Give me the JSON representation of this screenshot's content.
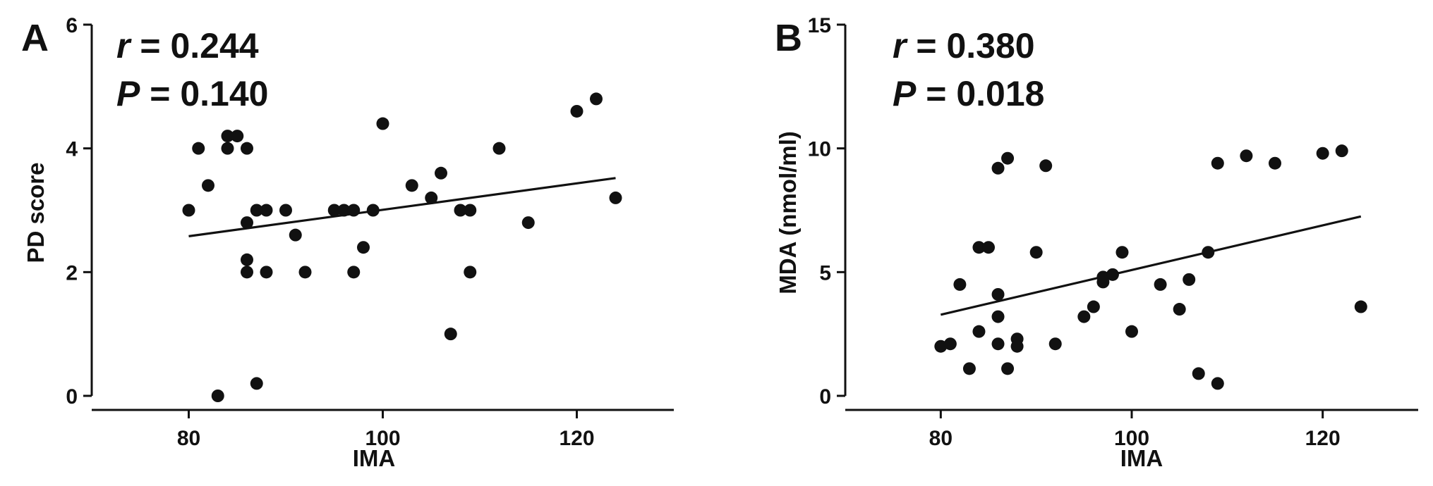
{
  "chart_data": [
    {
      "type": "scatter",
      "panel": "A",
      "stats": [
        {
          "symbol": "r",
          "text": " = 0.244"
        },
        {
          "symbol": "P",
          "text": " = 0.140"
        }
      ],
      "xlabel": "IMA",
      "ylabel": "PD score",
      "xlim": [
        70,
        130
      ],
      "ylim": [
        0,
        6
      ],
      "xticks": [
        80,
        100,
        120
      ],
      "yticks": [
        0,
        2,
        4,
        6
      ],
      "grid": false,
      "trendline": {
        "x1": 80,
        "y1": 2.58,
        "x2": 124,
        "y2": 3.52
      },
      "points": [
        {
          "x": 80,
          "y": 3.0
        },
        {
          "x": 81,
          "y": 4.0
        },
        {
          "x": 82,
          "y": 3.4
        },
        {
          "x": 83,
          "y": 0.0
        },
        {
          "x": 84,
          "y": 4.2
        },
        {
          "x": 84,
          "y": 4.0
        },
        {
          "x": 85,
          "y": 4.2
        },
        {
          "x": 86,
          "y": 4.0
        },
        {
          "x": 86,
          "y": 2.8
        },
        {
          "x": 86,
          "y": 2.2
        },
        {
          "x": 86,
          "y": 2.0
        },
        {
          "x": 87,
          "y": 3.0
        },
        {
          "x": 87,
          "y": 0.2
        },
        {
          "x": 88,
          "y": 3.0
        },
        {
          "x": 88,
          "y": 2.0
        },
        {
          "x": 90,
          "y": 3.0
        },
        {
          "x": 91,
          "y": 2.6
        },
        {
          "x": 92,
          "y": 2.0
        },
        {
          "x": 95,
          "y": 3.0
        },
        {
          "x": 96,
          "y": 3.0
        },
        {
          "x": 97,
          "y": 3.0
        },
        {
          "x": 97,
          "y": 2.0
        },
        {
          "x": 98,
          "y": 2.4
        },
        {
          "x": 99,
          "y": 3.0
        },
        {
          "x": 100,
          "y": 4.4
        },
        {
          "x": 103,
          "y": 3.4
        },
        {
          "x": 105,
          "y": 3.2
        },
        {
          "x": 106,
          "y": 3.6
        },
        {
          "x": 107,
          "y": 1.0
        },
        {
          "x": 108,
          "y": 3.0
        },
        {
          "x": 109,
          "y": 3.0
        },
        {
          "x": 109,
          "y": 2.0
        },
        {
          "x": 112,
          "y": 4.0
        },
        {
          "x": 115,
          "y": 2.8
        },
        {
          "x": 120,
          "y": 4.6
        },
        {
          "x": 122,
          "y": 4.8
        },
        {
          "x": 124,
          "y": 3.2
        }
      ]
    },
    {
      "type": "scatter",
      "panel": "B",
      "stats": [
        {
          "symbol": "r",
          "text": " = 0.380"
        },
        {
          "symbol": "P",
          "text": " = 0.018"
        }
      ],
      "xlabel": "IMA",
      "ylabel": "MDA (nmol/ml)",
      "xlim": [
        70,
        130
      ],
      "ylim": [
        0,
        15
      ],
      "xticks": [
        80,
        100,
        120
      ],
      "yticks": [
        0,
        5,
        10,
        15
      ],
      "grid": false,
      "trendline": {
        "x1": 80,
        "y1": 3.28,
        "x2": 124,
        "y2": 7.25
      },
      "points": [
        {
          "x": 80,
          "y": 2.0
        },
        {
          "x": 81,
          "y": 2.1
        },
        {
          "x": 82,
          "y": 4.5
        },
        {
          "x": 83,
          "y": 1.1
        },
        {
          "x": 84,
          "y": 6.0
        },
        {
          "x": 84,
          "y": 2.6
        },
        {
          "x": 85,
          "y": 6.0
        },
        {
          "x": 86,
          "y": 9.2
        },
        {
          "x": 86,
          "y": 4.1
        },
        {
          "x": 86,
          "y": 3.2
        },
        {
          "x": 86,
          "y": 2.1
        },
        {
          "x": 87,
          "y": 9.6
        },
        {
          "x": 87,
          "y": 1.1
        },
        {
          "x": 88,
          "y": 2.3
        },
        {
          "x": 88,
          "y": 2.0
        },
        {
          "x": 90,
          "y": 5.8
        },
        {
          "x": 91,
          "y": 9.3
        },
        {
          "x": 92,
          "y": 2.1
        },
        {
          "x": 95,
          "y": 3.2
        },
        {
          "x": 96,
          "y": 3.6
        },
        {
          "x": 97,
          "y": 4.6
        },
        {
          "x": 97,
          "y": 4.8
        },
        {
          "x": 98,
          "y": 4.9
        },
        {
          "x": 99,
          "y": 5.8
        },
        {
          "x": 100,
          "y": 2.6
        },
        {
          "x": 103,
          "y": 4.5
        },
        {
          "x": 105,
          "y": 3.5
        },
        {
          "x": 106,
          "y": 4.7
        },
        {
          "x": 107,
          "y": 0.9
        },
        {
          "x": 108,
          "y": 5.8
        },
        {
          "x": 109,
          "y": 9.4
        },
        {
          "x": 109,
          "y": 0.5
        },
        {
          "x": 112,
          "y": 9.7
        },
        {
          "x": 115,
          "y": 9.4
        },
        {
          "x": 120,
          "y": 9.8
        },
        {
          "x": 122,
          "y": 9.9
        },
        {
          "x": 124,
          "y": 3.6
        }
      ]
    }
  ]
}
